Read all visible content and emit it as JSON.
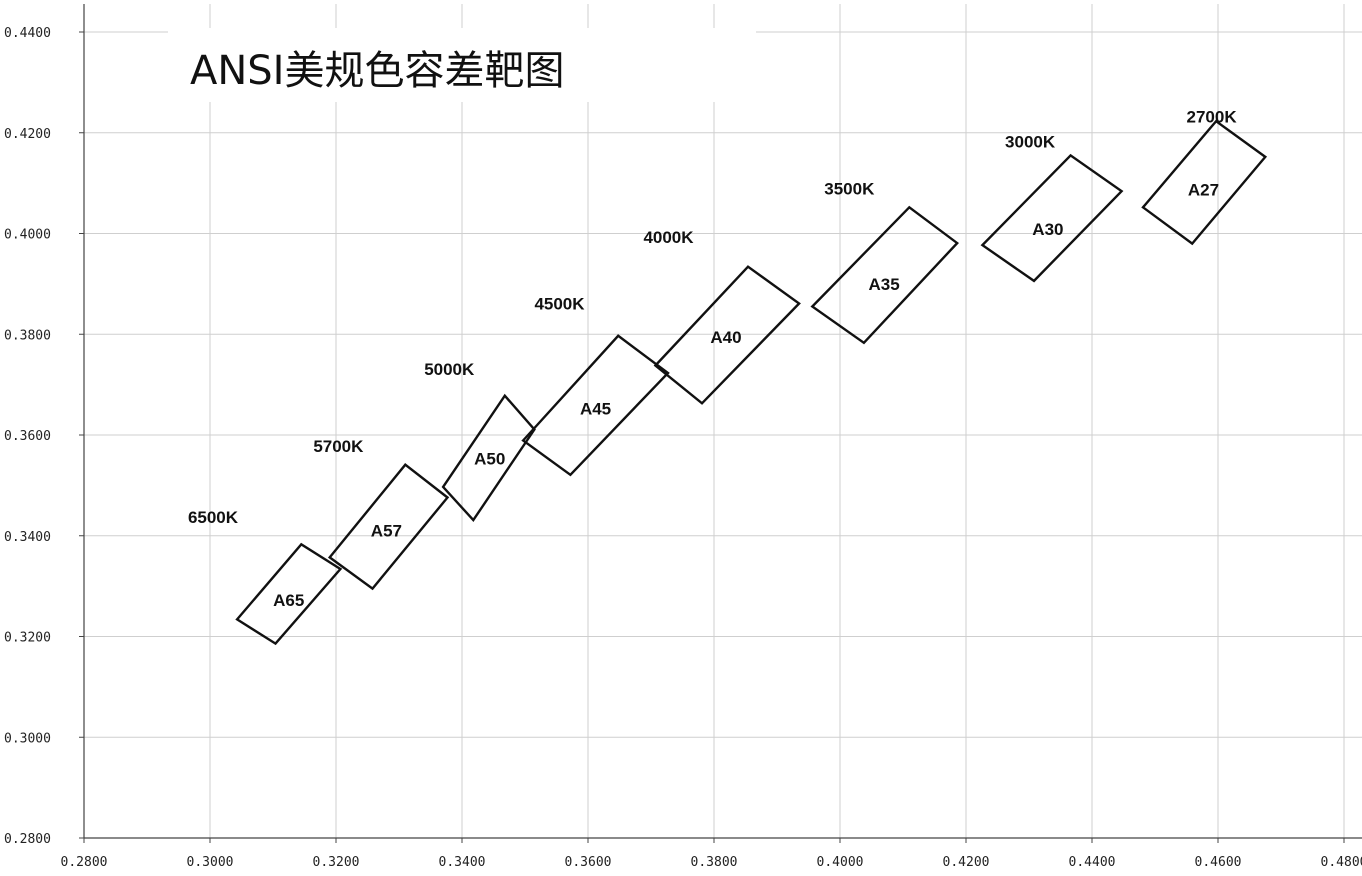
{
  "chart_data": {
    "type": "scatter",
    "title": "ANSI美规色容差靶图",
    "xlabel": "",
    "ylabel": "",
    "xlim": [
      0.28,
      0.48
    ],
    "ylim": [
      0.28,
      0.44
    ],
    "grid": true,
    "x_ticks": [
      0.28,
      0.3,
      0.32,
      0.34,
      0.36,
      0.38,
      0.4,
      0.42,
      0.44,
      0.46,
      0.48
    ],
    "y_ticks": [
      0.28,
      0.3,
      0.32,
      0.34,
      0.36,
      0.38,
      0.4,
      0.42,
      0.44
    ],
    "x_tick_labels": [
      "0.2800",
      "0.3000",
      "0.3200",
      "0.3400",
      "0.3600",
      "0.3800",
      "0.4000",
      "0.4200",
      "0.4400",
      "0.4600",
      "0.4800"
    ],
    "y_tick_labels": [
      "0.2800",
      "0.3000",
      "0.3200",
      "0.3400",
      "0.3600",
      "0.3800",
      "0.4000",
      "0.4200",
      "0.4400"
    ],
    "series": [
      {
        "bin": "A65",
        "cct": "6500K",
        "polygon": [
          [
            0.3043,
            0.3234
          ],
          [
            0.3145,
            0.3383
          ],
          [
            0.3207,
            0.3334
          ],
          [
            0.3104,
            0.3186
          ]
        ],
        "label_at": [
          0.3125,
          0.3272
        ],
        "cct_at": [
          0.2965,
          0.3437
        ]
      },
      {
        "bin": "A57",
        "cct": "5700K",
        "polygon": [
          [
            0.319,
            0.3357
          ],
          [
            0.331,
            0.3541
          ],
          [
            0.3377,
            0.3476
          ],
          [
            0.3258,
            0.3295
          ]
        ],
        "label_at": [
          0.328,
          0.341
        ],
        "cct_at": [
          0.3164,
          0.3578
        ]
      },
      {
        "bin": "A50",
        "cct": "5000K",
        "polygon": [
          [
            0.337,
            0.3497
          ],
          [
            0.3468,
            0.3678
          ],
          [
            0.3515,
            0.3611
          ],
          [
            0.3418,
            0.3431
          ]
        ],
        "label_at": [
          0.3444,
          0.3553
        ],
        "cct_at": [
          0.334,
          0.3731
        ]
      },
      {
        "bin": "A45",
        "cct": "4500K",
        "polygon": [
          [
            0.3497,
            0.3589
          ],
          [
            0.3648,
            0.3797
          ],
          [
            0.3727,
            0.3723
          ],
          [
            0.3572,
            0.3521
          ]
        ],
        "label_at": [
          0.3612,
          0.3653
        ],
        "cct_at": [
          0.3515,
          0.3861
        ]
      },
      {
        "bin": "A40",
        "cct": "4000K",
        "polygon": [
          [
            0.3707,
            0.3738
          ],
          [
            0.3854,
            0.3934
          ],
          [
            0.3935,
            0.3861
          ],
          [
            0.3781,
            0.3663
          ]
        ],
        "label_at": [
          0.3819,
          0.3795
        ],
        "cct_at": [
          0.3688,
          0.3993
        ]
      },
      {
        "bin": "A35",
        "cct": "3500K",
        "polygon": [
          [
            0.3956,
            0.3855
          ],
          [
            0.411,
            0.4052
          ],
          [
            0.4186,
            0.3981
          ],
          [
            0.4038,
            0.3783
          ]
        ],
        "label_at": [
          0.407,
          0.39
        ],
        "cct_at": [
          0.3975,
          0.4089
        ]
      },
      {
        "bin": "A30",
        "cct": "3000K",
        "polygon": [
          [
            0.4226,
            0.3977
          ],
          [
            0.4366,
            0.4155
          ],
          [
            0.4447,
            0.4084
          ],
          [
            0.4308,
            0.3906
          ]
        ],
        "label_at": [
          0.433,
          0.4009
        ],
        "cct_at": [
          0.4262,
          0.4183
        ]
      },
      {
        "bin": "A27",
        "cct": "2700K",
        "polygon": [
          [
            0.4481,
            0.4052
          ],
          [
            0.4597,
            0.4223
          ],
          [
            0.4675,
            0.4152
          ],
          [
            0.4559,
            0.398
          ]
        ],
        "label_at": [
          0.4577,
          0.4087
        ],
        "cct_at": [
          0.455,
          0.4232
        ]
      }
    ]
  }
}
